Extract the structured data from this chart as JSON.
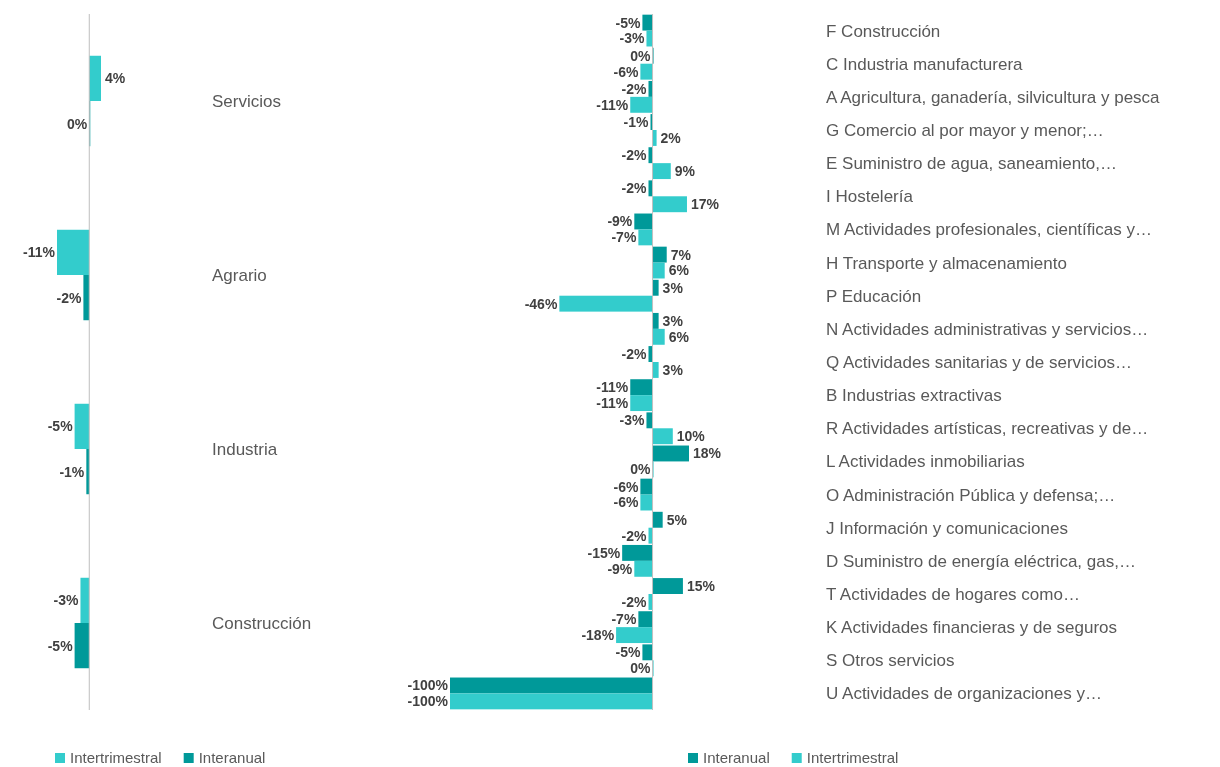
{
  "chart_data": [
    {
      "type": "bar",
      "orientation": "horizontal",
      "categories": [
        "Servicios",
        "Agrario",
        "Industria",
        "Construcción"
      ],
      "series": [
        {
          "name": "Intertrimestral",
          "color": "#33cccc",
          "values": [
            4,
            -11,
            -5,
            -3
          ],
          "value_labels": [
            "4%",
            "-11%",
            "-5%",
            "-3%"
          ]
        },
        {
          "name": "Interanual",
          "color": "#009999",
          "values": [
            0,
            -2,
            -1,
            -5
          ],
          "value_labels": [
            "0%",
            "-2%",
            "-1%",
            "-5%"
          ]
        }
      ],
      "legend": "bottom",
      "tick_labels": "y"
    },
    {
      "type": "bar",
      "orientation": "horizontal",
      "categories": [
        "F Construcción",
        "C Industria manufacturera",
        "A Agricultura, ganadería, silvicultura y pesca",
        "G Comercio al por mayor y menor;…",
        "E Suministro de agua, saneamiento,…",
        "I Hostelería",
        "M Actividades profesionales, científicas y…",
        "H Transporte y almacenamiento",
        "P Educación",
        "N Actividades administrativas y servicios…",
        "Q Actividades sanitarias y de servicios…",
        "B Industrias extractivas",
        "R Actividades artísticas, recreativas y de…",
        "L Actividades inmobiliarias",
        "O Administración Pública y defensa;…",
        "J Información y comunicaciones",
        "D Suministro de energía eléctrica, gas,…",
        "T Actividades de hogares como…",
        "K Actividades financieras y de seguros",
        "S Otros servicios",
        "U Actividades de organizaciones y…"
      ],
      "series": [
        {
          "name": "Interanual",
          "color": "#009999",
          "values": [
            -5,
            0,
            -2,
            -1,
            -2,
            -2,
            -9,
            7,
            3,
            3,
            -2,
            -11,
            -3,
            18,
            -6,
            5,
            -15,
            15,
            -7,
            -5,
            -100
          ],
          "value_labels": [
            "-5%",
            "0%",
            "-2%",
            "-1%",
            "-2%",
            "-2%",
            "-9%",
            "7%",
            "3%",
            "3%",
            "-2%",
            "-11%",
            "-3%",
            "18%",
            "-6%",
            "5%",
            "-15%",
            "15%",
            "-7%",
            "-5%",
            "-100%"
          ]
        },
        {
          "name": "Intertrimestral",
          "color": "#33cccc",
          "values": [
            -3,
            -6,
            -11,
            2,
            9,
            17,
            -7,
            6,
            -46,
            6,
            3,
            -11,
            10,
            0,
            -6,
            -2,
            -9,
            -2,
            -18,
            0,
            -100
          ],
          "value_labels": [
            "-3%",
            "-6%",
            "-11%",
            "2%",
            "9%",
            "17%",
            "-7%",
            "6%",
            "-46%",
            "6%",
            "3%",
            "-11%",
            "10%",
            "0%",
            "-6%",
            "-2%",
            "-9%",
            "-2%",
            "-18%",
            "0%",
            "-100%"
          ]
        }
      ],
      "legend": "bottom",
      "tick_labels": "y"
    }
  ]
}
